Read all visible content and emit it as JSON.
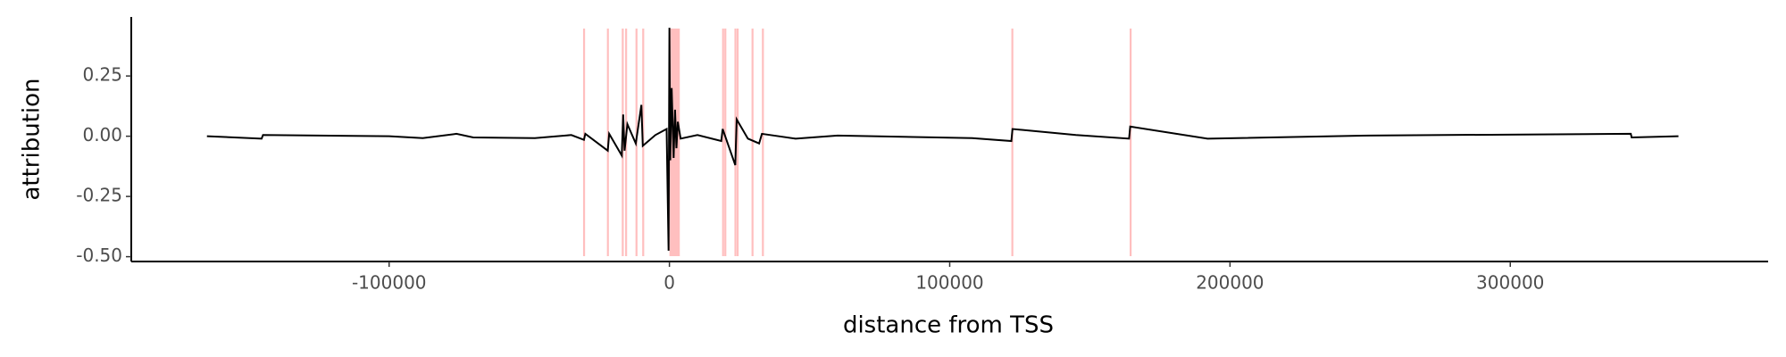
{
  "chart_data": {
    "type": "line",
    "xlabel": "distance from TSS",
    "ylabel": "attribution",
    "xlim": [
      -192000,
      392000
    ],
    "ylim": [
      -0.52,
      0.495
    ],
    "xticks": [
      -100000,
      0,
      100000,
      200000,
      300000
    ],
    "yticks": [
      {
        "value": -0.5,
        "label": "-0.50"
      },
      -0.25,
      {
        "value": 0,
        "label": "0.00"
      },
      0.25
    ],
    "highlight_color": "#ff8080",
    "highlight_regions": [
      [
        -30800,
        -30100
      ],
      [
        -22300,
        -21600
      ],
      [
        -17000,
        -16300
      ],
      [
        -15800,
        -15100
      ],
      [
        -12100,
        -11400
      ],
      [
        -9700,
        -9000
      ],
      [
        0,
        3700
      ],
      [
        18800,
        19500
      ],
      [
        19600,
        20300
      ],
      [
        23200,
        23900
      ],
      [
        24000,
        24700
      ],
      [
        29300,
        30000
      ],
      [
        33000,
        33700
      ],
      [
        122000,
        122700
      ],
      [
        164200,
        164900
      ]
    ],
    "series": [
      {
        "color": "#000000",
        "x": [
          -165000,
          -145500,
          -145000,
          -100000,
          -88000,
          -76000,
          -70000,
          -48000,
          -35000,
          -30500,
          -30000,
          -22000,
          -21500,
          -17000,
          -16500,
          -16000,
          -15000,
          -12000,
          -10000,
          -9500,
          -5000,
          -1000,
          -300,
          0,
          300,
          800,
          1500,
          2000,
          2500,
          3000,
          4000,
          10000,
          18500,
          19000,
          23500,
          24000,
          28000,
          32000,
          33000,
          45000,
          60000,
          108000,
          122000,
          122400,
          145000,
          164000,
          164400,
          192000,
          250000,
          343000,
          343300,
          360000
        ],
        "values": [
          0,
          -0.01,
          0.005,
          0,
          -0.008,
          0.01,
          -0.005,
          -0.008,
          0.005,
          -0.015,
          0.01,
          -0.06,
          0.01,
          -0.08,
          0.09,
          -0.06,
          0.05,
          -0.03,
          0.13,
          -0.04,
          0.005,
          0.03,
          -0.475,
          0.45,
          -0.1,
          0.2,
          -0.09,
          0.11,
          -0.05,
          0.06,
          -0.01,
          0.005,
          -0.02,
          0.03,
          -0.12,
          0.07,
          -0.01,
          -0.03,
          0.01,
          -0.01,
          0.003,
          -0.008,
          -0.02,
          0.03,
          0.005,
          -0.01,
          0.04,
          -0.01,
          0.003,
          0.01,
          -0.005,
          0
        ]
      }
    ]
  }
}
